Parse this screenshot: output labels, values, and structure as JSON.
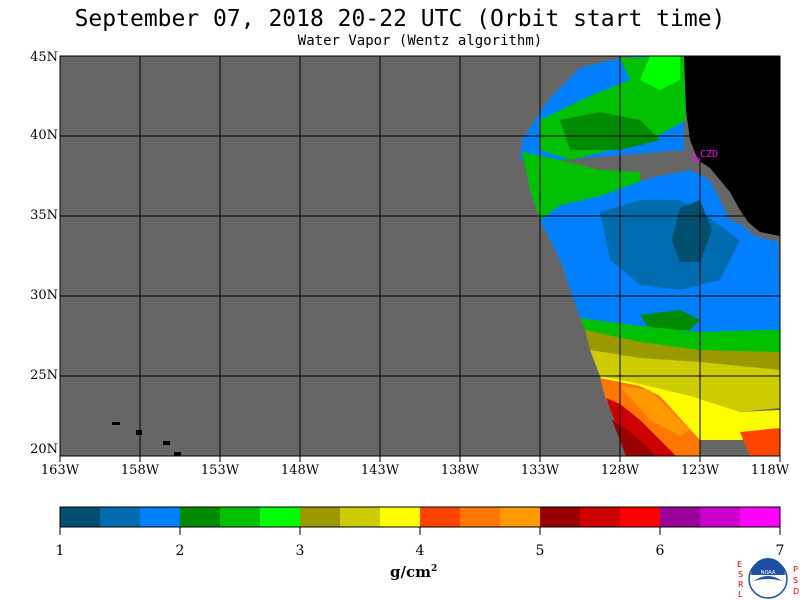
{
  "header": {
    "title": "September 07, 2018  20-22 UTC  (Orbit start time)",
    "subtitle": "Water Vapor (Wentz algorithm)"
  },
  "map": {
    "lat_labels": [
      "45N",
      "40N",
      "35N",
      "30N",
      "25N",
      "20N"
    ],
    "lon_labels": [
      "163W",
      "158W",
      "153W",
      "148W",
      "143W",
      "138W",
      "133W",
      "128W",
      "123W",
      "118W"
    ],
    "station_label": "CZD",
    "colors": {
      "no_data": "#666666",
      "land": "#000000",
      "grid": "#000000",
      "station": "#ff00ff"
    }
  },
  "colorbar": {
    "tick_labels": [
      "1",
      "2",
      "3",
      "4",
      "5",
      "6",
      "7"
    ],
    "units": "g/cm",
    "units_exp": "2",
    "colors": [
      "#004f6f",
      "#006cb0",
      "#0080ff",
      "#008a00",
      "#00c000",
      "#00ff00",
      "#9a9a00",
      "#cccc00",
      "#ffff00",
      "#ff4400",
      "#ff7700",
      "#ff9900",
      "#990000",
      "#cc0000",
      "#ff0000",
      "#990099",
      "#cc00cc",
      "#ff00ff"
    ]
  },
  "logo": {
    "left_letters": "ESRL",
    "right_letters": "PSD",
    "center_text": "NOAA"
  }
}
